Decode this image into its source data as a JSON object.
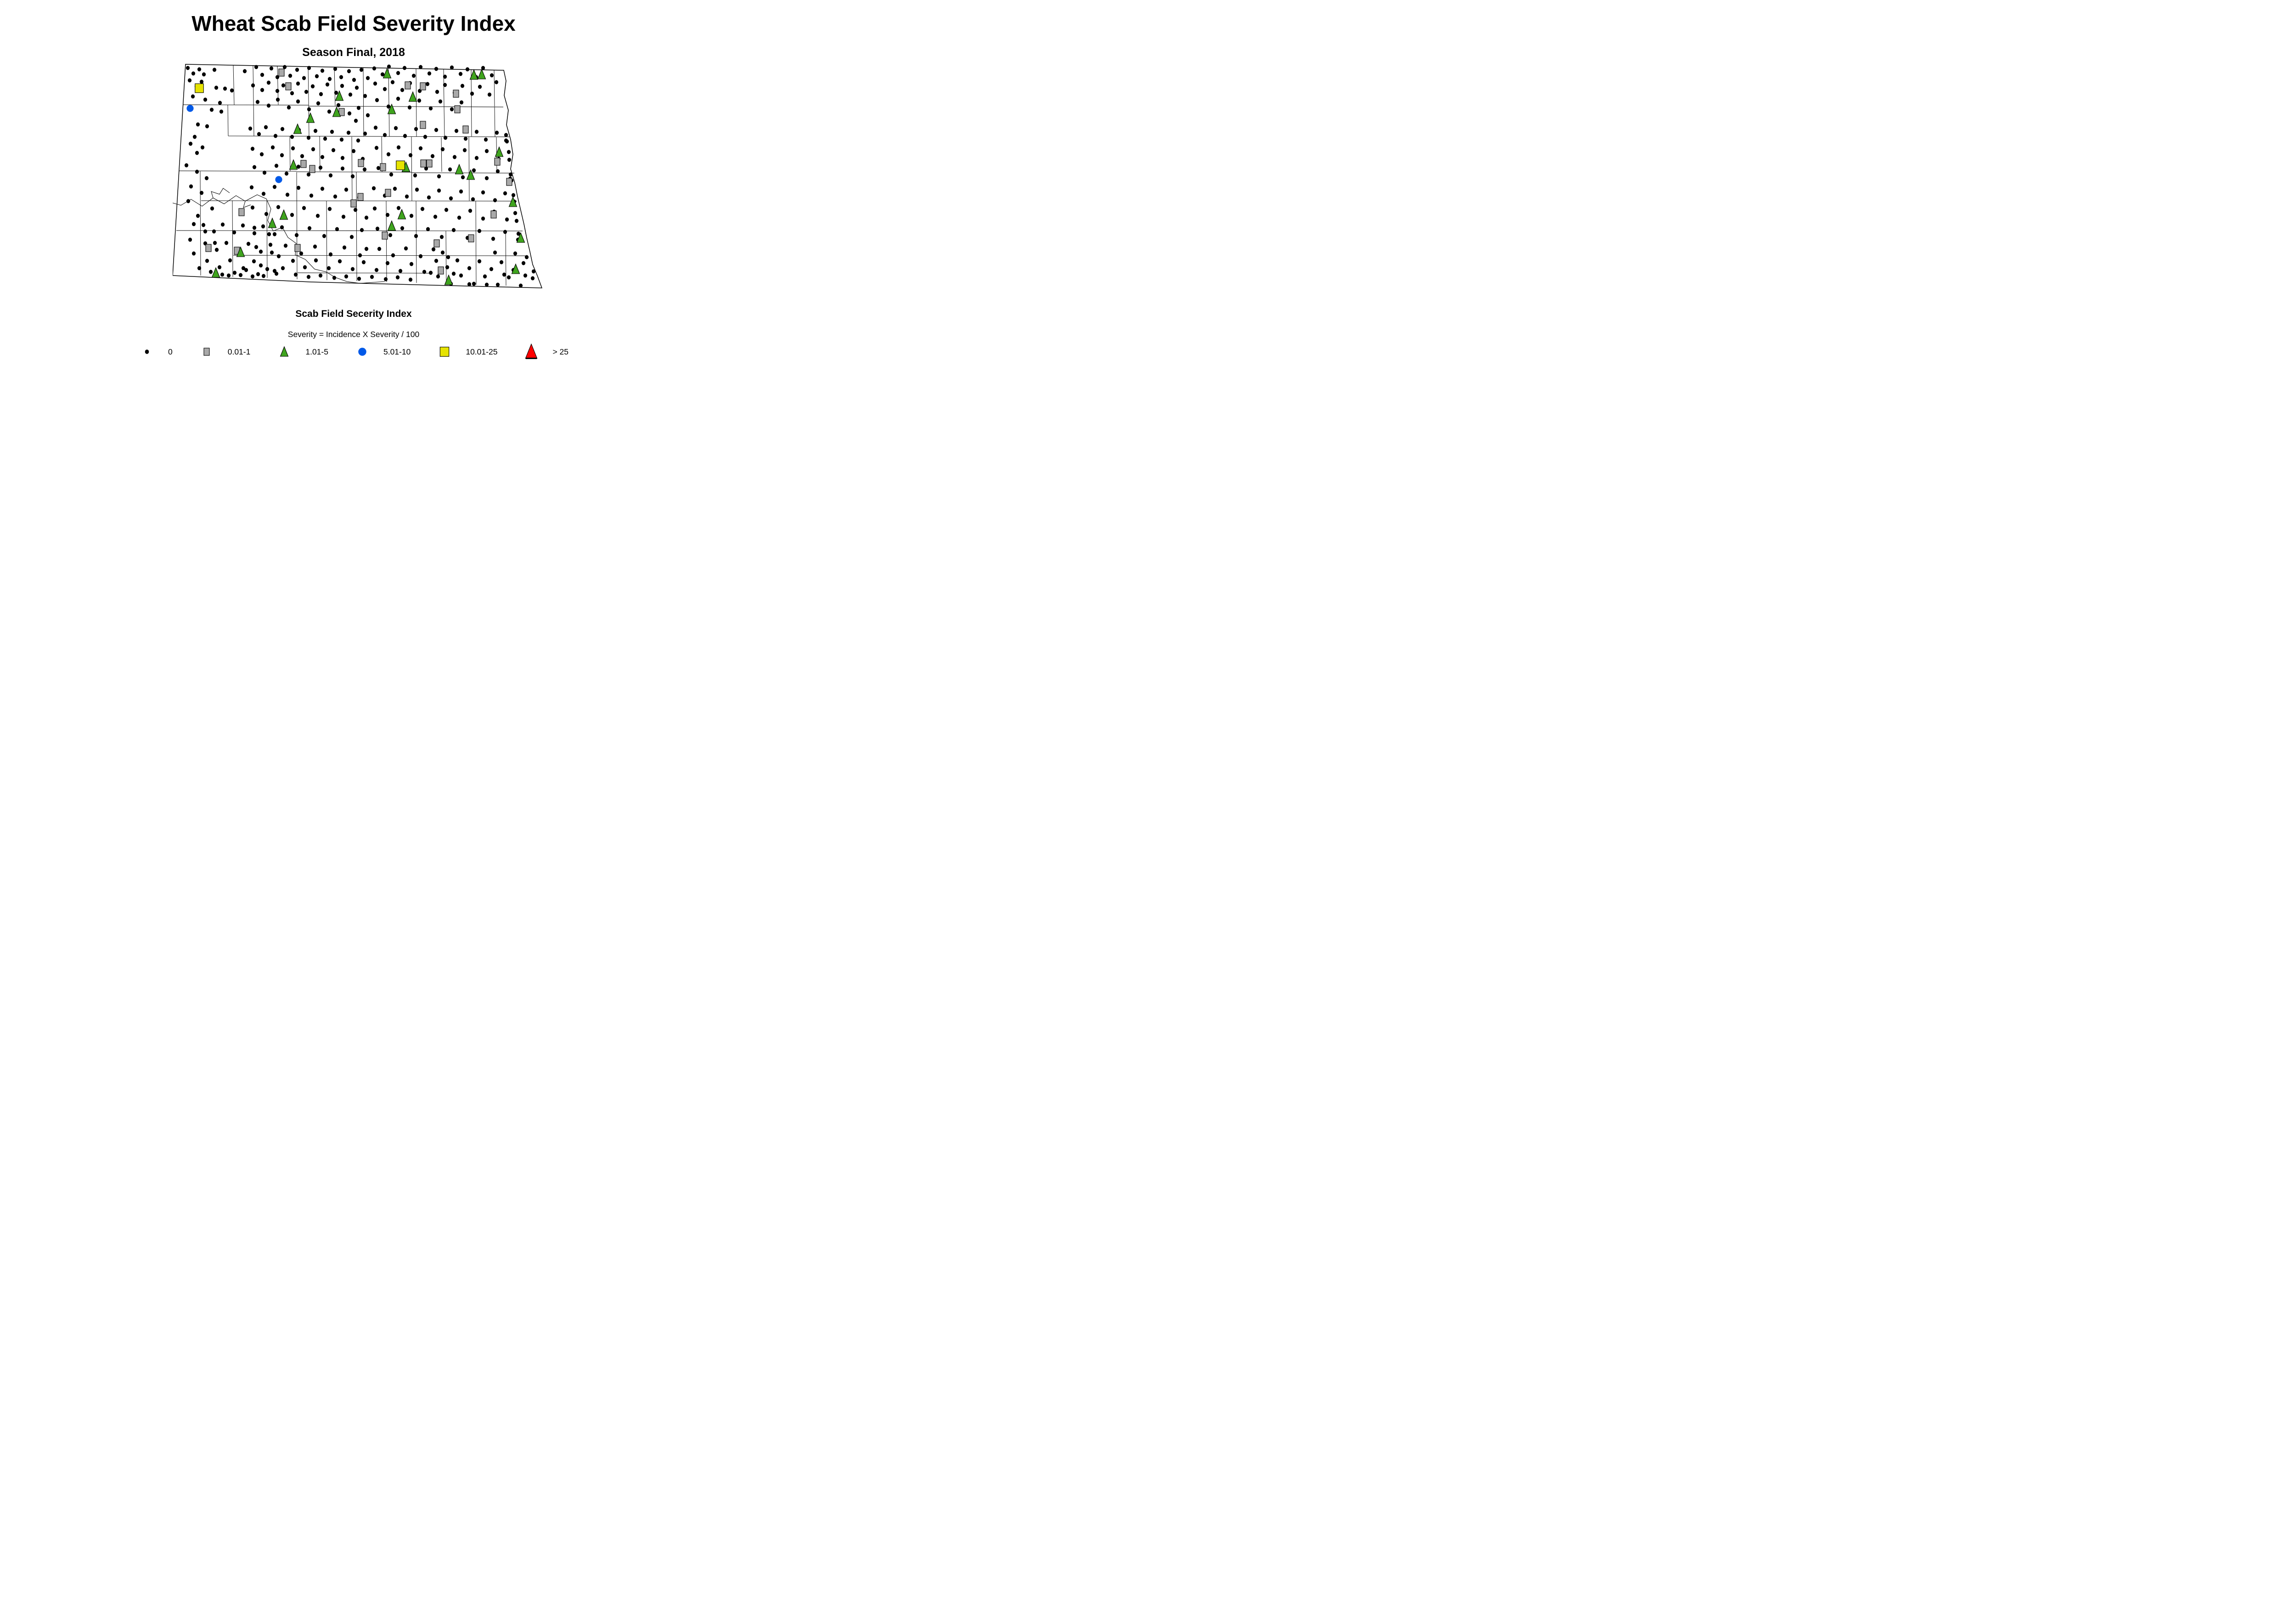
{
  "title": "Wheat Scab Field Severity Index",
  "subtitle": "Season Final, 2018",
  "caption": {
    "heading": "Scab Field Secerity Index",
    "formula": "Severity = Incidence X Severity / 100"
  },
  "legend": {
    "items": [
      {
        "label": "0",
        "marker": "dot",
        "color": "#000000"
      },
      {
        "label": "0.01-1",
        "marker": "square",
        "color": "#a9a9a9"
      },
      {
        "label": "1.01-5",
        "marker": "triangle",
        "color": "#3fa41e"
      },
      {
        "label": "5.01-10",
        "marker": "circle",
        "color": "#0059e8"
      },
      {
        "label": "10.01-25",
        "marker": "square-big",
        "color": "#e6e300"
      },
      {
        "label": "> 25",
        "marker": "triangle-big",
        "color": "#ff0000"
      }
    ]
  },
  "chart_data": {
    "type": "scatter",
    "title": "Wheat Scab Field Severity Index",
    "subtitle": "Season Final, 2018",
    "caption": "Scab Field Secerity Index",
    "note": "Severity = Incidence X Severity / 100",
    "region": "North Dakota counties",
    "legend_position": "bottom",
    "series": [
      {
        "name": "0",
        "marker": "dot",
        "color": "#000000",
        "points": [
          33,
          12,
          58,
          15,
          45,
          24,
          68,
          26,
          91,
          16,
          37,
          39,
          63,
          42,
          52,
          52,
          95,
          55,
          114,
          57,
          44,
          74,
          71,
          81,
          85,
          103,
          106,
          107,
          55,
          135,
          75,
          139,
          48,
          162,
          39,
          177,
          65,
          185,
          53,
          197,
          103,
          88,
          129,
          61,
          157,
          19,
          182,
          10,
          195,
          27,
          215,
          13,
          228,
          32,
          244,
          10,
          256,
          29,
          271,
          16,
          286,
          34,
          297,
          12,
          314,
          30,
          326,
          18,
          342,
          36,
          354,
          14,
          367,
          32,
          384,
          19,
          395,
          38,
          411,
          16,
          425,
          34,
          175,
          50,
          195,
          60,
          209,
          44,
          228,
          62,
          241,
          50,
          260,
          67,
          273,
          46,
          291,
          64,
          305,
          52,
          323,
          69,
          337,
          48,
          356,
          66,
          369,
          51,
          387,
          70,
          401,
          55,
          419,
          73,
          185,
          86,
          209,
          94,
          229,
          81,
          253,
          98,
          273,
          85,
          297,
          102,
          317,
          89,
          341,
          107,
          361,
          93,
          385,
          111,
          405,
          99,
          425,
          115,
          399,
          127,
          439,
          13,
          457,
          26,
          471,
          9,
          491,
          23,
          505,
          12,
          525,
          29,
          540,
          10,
          559,
          24,
          574,
          14,
          593,
          31,
          608,
          11,
          627,
          25,
          642,
          15,
          661,
          32,
          676,
          12,
          695,
          28,
          705,
          43,
          441,
          46,
          462,
          58,
          479,
          43,
          500,
          60,
          517,
          45,
          538,
          62,
          555,
          47,
          576,
          64,
          593,
          49,
          614,
          66,
          631,
          51,
          652,
          68,
          669,
          53,
          690,
          70,
          445,
          82,
          470,
          96,
          491,
          79,
          516,
          98,
          537,
          83,
          562,
          100,
          583,
          85,
          608,
          102,
          629,
          87,
          169,
          144,
          188,
          156,
          203,
          141,
          224,
          160,
          239,
          145,
          260,
          162,
          275,
          147,
          296,
          164,
          311,
          149,
          332,
          166,
          347,
          151,
          368,
          168,
          383,
          153,
          404,
          170,
          419,
          155,
          174,
          188,
          194,
          200,
          218,
          185,
          238,
          202,
          262,
          187,
          282,
          204,
          306,
          189,
          326,
          206,
          350,
          191,
          370,
          208,
          394,
          193,
          414,
          210,
          178,
          228,
          200,
          240,
          226,
          225,
          248,
          242,
          274,
          227,
          296,
          244,
          322,
          229,
          344,
          246,
          370,
          231,
          392,
          248,
          418,
          233,
          442,
          142,
          462,
          158,
          486,
          143,
          506,
          160,
          530,
          145,
          550,
          162,
          574,
          147,
          594,
          164,
          618,
          149,
          638,
          166,
          662,
          151,
          682,
          168,
          706,
          153,
          726,
          170,
          726,
          158,
          444,
          186,
          470,
          200,
          492,
          185,
          518,
          202,
          540,
          187,
          566,
          204,
          588,
          189,
          614,
          206,
          636,
          191,
          662,
          208,
          684,
          193,
          710,
          210,
          732,
          195,
          728,
          172,
          448,
          230,
          476,
          244,
          500,
          229,
          528,
          246,
          552,
          231,
          580,
          248,
          604,
          233,
          632,
          250,
          656,
          235,
          684,
          252,
          708,
          237,
          736,
          244,
          733,
          212,
          738,
          257,
          735,
          253,
          30,
          224,
          53,
          238,
          74,
          252,
          40,
          270,
          63,
          284,
          34,
          302,
          86,
          318,
          55,
          334,
          46,
          352,
          71,
          368,
          38,
          386,
          92,
          393,
          172,
          272,
          198,
          286,
          222,
          271,
          250,
          288,
          274,
          273,
          302,
          290,
          326,
          275,
          354,
          292,
          378,
          277,
          406,
          294,
          174,
          316,
          204,
          330,
          230,
          315,
          260,
          332,
          286,
          317,
          316,
          334,
          342,
          319,
          372,
          336,
          398,
          321,
          422,
          338,
          178,
          360,
          210,
          374,
          238,
          359,
          270,
          376,
          298,
          361,
          330,
          378,
          358,
          363,
          390,
          380,
          412,
          365,
          182,
          402,
          216,
          414,
          246,
          399,
          280,
          416,
          310,
          401,
          344,
          418,
          374,
          403,
          408,
          420,
          422,
          406,
          192,
          442,
          222,
          454,
          438,
          274,
          462,
          290,
          484,
          275,
          510,
          292,
          532,
          277,
          558,
          294,
          580,
          279,
          606,
          296,
          628,
          281,
          654,
          298,
          676,
          283,
          702,
          300,
          724,
          285,
          744,
          303,
          742,
          289,
          440,
          318,
          468,
          332,
          492,
          317,
          520,
          334,
          544,
          319,
          572,
          336,
          596,
          321,
          624,
          338,
          648,
          323,
          676,
          340,
          700,
          325,
          728,
          342,
          746,
          328,
          749,
          345,
          446,
          362,
          474,
          376,
          500,
          361,
          530,
          378,
          556,
          363,
          586,
          380,
          612,
          365,
          642,
          382,
          668,
          367,
          698,
          384,
          724,
          369,
          752,
          386,
          753,
          373,
          450,
          406,
          480,
          420,
          508,
          405,
          540,
          422,
          568,
          407,
          600,
          424,
          67,
          354,
          90,
          368,
          109,
          353,
          134,
          370,
          153,
          355,
          178,
          372,
          197,
          357,
          222,
          374,
          71,
          394,
          96,
          408,
          117,
          393,
          144,
          410,
          165,
          395,
          192,
          412,
          213,
          397,
          75,
          432,
          102,
          446,
          125,
          431,
          154,
          448,
          177,
          433,
          206,
          450,
          83,
          456,
          108,
          462,
          135,
          458,
          160,
          452,
          186,
          461,
          46,
          416,
          58,
          448,
          231,
          422,
          240,
          448,
          94,
          460,
          122,
          464,
          148,
          463,
          174,
          466,
          198,
          465,
          226,
          460,
          262,
          432,
          288,
          446,
          312,
          431,
          340,
          448,
          364,
          433,
          392,
          450,
          416,
          435,
          444,
          452,
          468,
          437,
          496,
          454,
          520,
          439,
          548,
          456,
          268,
          462,
          296,
          467,
          322,
          464,
          352,
          469,
          378,
          466,
          406,
          471,
          434,
          467,
          464,
          472,
          490,
          468,
          518,
          473,
          574,
          432,
          598,
          446,
          620,
          431,
          646,
          448,
          668,
          433,
          694,
          450,
          716,
          435,
          742,
          452,
          764,
          437,
          786,
          455,
          578,
          466,
          604,
          480,
          628,
          464,
          656,
          482,
          680,
          466,
          708,
          484,
          732,
          468,
          758,
          486,
          784,
          470,
          562,
          458,
          588,
          414,
          612,
          460,
          702,
          414,
          722,
          462,
          746,
          416,
          768,
          464,
          771,
          424,
          606,
          482,
          646,
          483,
          684,
          484
        ]
      },
      {
        "name": "0.01-1",
        "marker": "square",
        "color": "#a9a9a9",
        "points": [
          237,
          22,
          252,
          52,
          368,
          108,
          512,
          50,
          545,
          52,
          617,
          68,
          620,
          102,
          545,
          136,
          638,
          146,
          285,
          221,
          304,
          232,
          410,
          219,
          458,
          228,
          546,
          220,
          559,
          220,
          707,
          216,
          733,
          260,
          394,
          307,
          409,
          293,
          469,
          284,
          699,
          331,
          150,
          326,
          78,
          404,
          140,
          410,
          272,
          404,
          462,
          377,
          575,
          394,
          650,
          383,
          584,
          453
        ]
      },
      {
        "name": "1.01-5",
        "marker": "triangle",
        "color": "#3fa41e",
        "points": [
          467,
          24,
          656,
          27,
          673,
          26,
          523,
          75,
          477,
          102,
          363,
          73,
          300,
          121,
          357,
          108,
          272,
          145,
          711,
          195,
          624,
          233,
          649,
          245,
          508,
          228,
          263,
          223,
          499,
          331,
          477,
          356,
          242,
          332,
          217,
          350,
          148,
          413,
          94,
          458,
          601,
          474,
          741,
          304,
          758,
          382,
          747,
          450
        ]
      },
      {
        "name": "5.01-10",
        "marker": "circle",
        "color": "#0059e8",
        "points": [
          38,
          100,
          231,
          255
        ]
      },
      {
        "name": "10.01-25",
        "marker": "square-big",
        "color": "#e6e300",
        "points": [
          58,
          56,
          496,
          224
        ]
      },
      {
        "name": "> 25",
        "marker": "triangle-big",
        "color": "#ff0000",
        "points": []
      }
    ]
  }
}
